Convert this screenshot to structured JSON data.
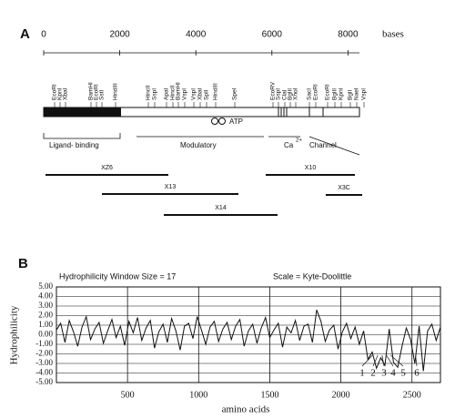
{
  "panel_a": {
    "label": "A",
    "scale_ticks": [
      0,
      2000,
      4000,
      6000,
      8000
    ],
    "scale_unit": "bases",
    "sites": [
      "EcoRI",
      "KpnI",
      "XbaI",
      "BamHI",
      "EcoRI",
      "SstI",
      "HindIII",
      "HincII",
      "SspI",
      "ApaI",
      "HincII",
      "BamHI",
      "VspI",
      "VspI",
      "XbaI",
      "SpII",
      "HindIII",
      "SpeI",
      "EcoRV",
      "SspI",
      "ClaI",
      "BglII",
      "XhoI",
      "SacI",
      "EcoRI",
      "EcoRI",
      "BglII",
      "KpnI",
      "BglI",
      "NaeI",
      "VspI"
    ],
    "atp": "ATP",
    "ligand": "Ligand- binding",
    "modulatory": "Modulatory",
    "channel_ca": "Ca",
    "channel_sup": "2+",
    "channel": "Channel",
    "clones": [
      "XZ6",
      "X13",
      "X14",
      "X10",
      "X3C"
    ]
  },
  "panel_b_label": "B",
  "chart_data": {
    "type": "line",
    "title": "Hydrophilicity Window Size =  17",
    "subtitle": "Scale = Kyte-Doolittle",
    "y_label": "Hydrophilicity",
    "x_label": "amino acids",
    "x": [
      0,
      30,
      60,
      90,
      120,
      150,
      180,
      210,
      240,
      270,
      300,
      330,
      360,
      390,
      420,
      450,
      480,
      510,
      540,
      570,
      600,
      630,
      660,
      690,
      720,
      750,
      780,
      810,
      840,
      870,
      900,
      930,
      960,
      990,
      1020,
      1050,
      1080,
      1110,
      1140,
      1170,
      1200,
      1230,
      1260,
      1290,
      1320,
      1350,
      1380,
      1410,
      1440,
      1470,
      1500,
      1530,
      1560,
      1590,
      1620,
      1650,
      1680,
      1710,
      1740,
      1770,
      1800,
      1830,
      1860,
      1890,
      1920,
      1950,
      1980,
      2010,
      2040,
      2070,
      2100,
      2130,
      2160,
      2190,
      2220,
      2250,
      2280,
      2310,
      2340,
      2370,
      2400,
      2430,
      2460,
      2490,
      2520,
      2550,
      2580,
      2610,
      2640,
      2670,
      2700
    ],
    "series": [
      {
        "name": "Hydrophilicity",
        "color": "#111111",
        "values": [
          0.5,
          1.2,
          -0.8,
          1.5,
          0.3,
          -1.2,
          0.8,
          1.9,
          -0.5,
          0.6,
          1.3,
          -0.9,
          0.4,
          1.6,
          -0.3,
          0.9,
          -1.1,
          1.4,
          0.2,
          1.8,
          -0.6,
          0.7,
          1.5,
          -1.4,
          0.3,
          1.1,
          -0.8,
          1.7,
          0.4,
          -1.6,
          0.9,
          1.2,
          -0.4,
          1.9,
          0.5,
          -1.0,
          0.8,
          1.4,
          -0.7,
          0.6,
          1.3,
          -0.5,
          0.9,
          1.6,
          -1.2,
          0.4,
          1.1,
          -0.9,
          0.7,
          1.8,
          -0.3,
          0.5,
          1.2,
          -1.3,
          0.8,
          0.2,
          1.5,
          -0.6,
          0.9,
          1.1,
          -0.8,
          2.6,
          1.4,
          -0.7,
          0.5,
          1.0,
          -1.5,
          0.3,
          1.2,
          -0.4,
          0.8,
          -1.0,
          0.4,
          -2.6,
          -1.8,
          -3.5,
          -2.4,
          -3.2,
          0.6,
          -2.9,
          -3.4,
          -1.2,
          0.7,
          -0.5,
          -3.0,
          0.9,
          -3.8,
          0.4,
          1.1,
          -0.6,
          0.8
        ]
      }
    ],
    "xlim": [
      0,
      2700
    ],
    "xticks": [
      500,
      1000,
      1500,
      2000,
      2500
    ],
    "ylim": [
      -5,
      5
    ],
    "yticks": [
      {
        "value": 5,
        "label": "5.00"
      },
      {
        "value": 4,
        "label": "4.00"
      },
      {
        "value": 3,
        "label": "3.00"
      },
      {
        "value": 2,
        "label": "2.00"
      },
      {
        "value": 1,
        "label": "1.00"
      },
      {
        "value": 0,
        "label": "0.00"
      },
      {
        "value": -1,
        "label": "-1.00"
      },
      {
        "value": -2,
        "label": "-2.00"
      },
      {
        "value": -3,
        "label": "-3.00"
      },
      {
        "value": -4,
        "label": "-4.00"
      },
      {
        "value": -5,
        "label": "-5.00"
      }
    ],
    "grid": true,
    "annotations": [
      "1",
      "2",
      "3",
      "4",
      "5",
      "6"
    ]
  }
}
